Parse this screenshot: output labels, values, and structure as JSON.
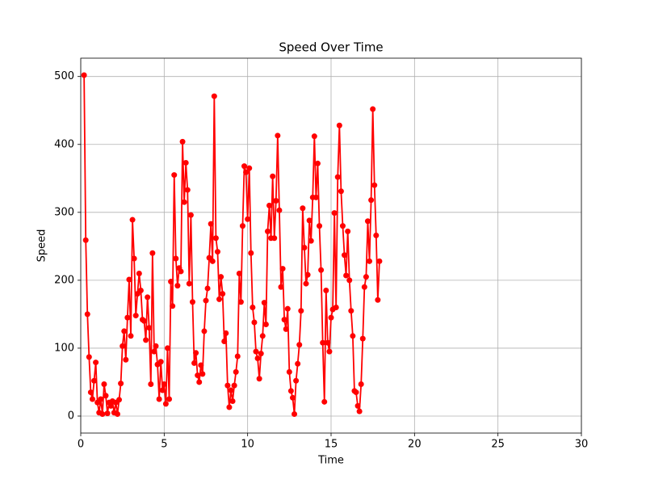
{
  "chart_data": {
    "type": "line",
    "title": "Speed Over Time",
    "x_label": "Time",
    "y_label": "Speed",
    "x": [
      0.2,
      0.3,
      0.4,
      0.5,
      0.6,
      0.7,
      0.8,
      0.9,
      1.0,
      1.1,
      1.2,
      1.3,
      1.4,
      1.5,
      1.6,
      1.7,
      1.8,
      1.9,
      2.0,
      2.1,
      2.2,
      2.3,
      2.4,
      2.5,
      2.6,
      2.7,
      2.8,
      2.9,
      3.0,
      3.1,
      3.2,
      3.3,
      3.4,
      3.5,
      3.6,
      3.7,
      3.8,
      3.9,
      4.0,
      4.1,
      4.2,
      4.3,
      4.4,
      4.5,
      4.6,
      4.7,
      4.8,
      4.9,
      5.0,
      5.1,
      5.2,
      5.3,
      5.4,
      5.5,
      5.6,
      5.7,
      5.8,
      5.9,
      6.0,
      6.1,
      6.2,
      6.3,
      6.4,
      6.5,
      6.6,
      6.7,
      6.8,
      6.9,
      7.0,
      7.1,
      7.2,
      7.3,
      7.4,
      7.5,
      7.6,
      7.7,
      7.8,
      7.9,
      8.0,
      8.1,
      8.2,
      8.3,
      8.4,
      8.5,
      8.6,
      8.7,
      8.8,
      8.9,
      9.0,
      9.1,
      9.2,
      9.3,
      9.4,
      9.5,
      9.6,
      9.7,
      9.8,
      9.9,
      10.0,
      10.1,
      10.2,
      10.3,
      10.4,
      10.5,
      10.6,
      10.7,
      10.8,
      10.9,
      11.0,
      11.1,
      11.2,
      11.3,
      11.4,
      11.5,
      11.6,
      11.7,
      11.8,
      11.9,
      12.0,
      12.1,
      12.2,
      12.3,
      12.4,
      12.5,
      12.6,
      12.7,
      12.8,
      12.9,
      13.0,
      13.1,
      13.2,
      13.3,
      13.4,
      13.5,
      13.6,
      13.7,
      13.8,
      13.9,
      14.0,
      14.1,
      14.2,
      14.3,
      14.4,
      14.5,
      14.6,
      14.7,
      14.8,
      14.9,
      15.0,
      15.1,
      15.2,
      15.3,
      15.4,
      15.5,
      15.6,
      15.7,
      15.8,
      15.9,
      16.0,
      16.1,
      16.2,
      16.3,
      16.4,
      16.5,
      16.6,
      16.7,
      16.8,
      16.9,
      17.0,
      17.1,
      17.2,
      17.3,
      17.4,
      17.5,
      17.6,
      17.7,
      17.8,
      17.9
    ],
    "values": [
      502,
      259,
      150,
      87,
      35,
      25,
      52,
      79,
      20,
      5,
      25,
      3,
      47,
      30,
      4,
      20,
      15,
      22,
      5,
      20,
      3,
      24,
      48,
      103,
      125,
      83,
      145,
      201,
      118,
      289,
      232,
      148,
      180,
      210,
      185,
      142,
      140,
      112,
      175,
      130,
      47,
      240,
      95,
      103,
      76,
      25,
      80,
      38,
      47,
      18,
      100,
      25,
      198,
      162,
      355,
      232,
      192,
      218,
      213,
      404,
      315,
      373,
      333,
      195,
      296,
      168,
      78,
      93,
      60,
      50,
      75,
      62,
      125,
      170,
      188,
      233,
      283,
      228,
      471,
      262,
      242,
      172,
      205,
      180,
      110,
      122,
      45,
      13,
      38,
      22,
      45,
      65,
      88,
      210,
      168,
      280,
      368,
      359,
      290,
      365,
      240,
      160,
      138,
      95,
      85,
      55,
      92,
      118,
      167,
      135,
      272,
      310,
      262,
      353,
      262,
      317,
      413,
      303,
      190,
      217,
      142,
      128,
      158,
      65,
      37,
      27,
      3,
      52,
      77,
      105,
      155,
      306,
      248,
      195,
      208,
      288,
      258,
      322,
      412,
      322,
      372,
      280,
      215,
      108,
      21,
      185,
      108,
      95,
      145,
      157,
      299,
      160,
      352,
      428,
      331,
      280,
      237,
      207,
      272,
      200,
      155,
      118,
      37,
      35,
      15,
      7,
      47,
      114,
      190,
      205,
      287,
      228,
      318,
      452,
      340,
      266,
      171,
      228
    ],
    "color": "#ff0000",
    "xlim": [
      0,
      30
    ],
    "xticks": [
      0,
      5,
      10,
      15,
      20,
      25,
      30
    ],
    "ylim": [
      -25,
      527
    ],
    "yticks": [
      0,
      100,
      200,
      300,
      400,
      500
    ],
    "grid": true
  }
}
